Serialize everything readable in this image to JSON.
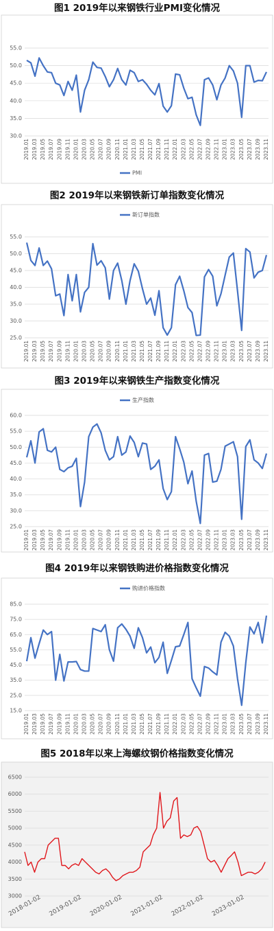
{
  "chart_data": [
    {
      "type": "line",
      "title": "图1  2019年以来钢铁行业PMI变化情况",
      "categories": [
        "2019.01",
        null,
        "2019.03",
        null,
        "2019.05",
        null,
        "2019.07",
        null,
        "2019.09",
        null,
        "2019.11",
        null,
        "2020.01",
        null,
        "2020.03",
        null,
        "2020.05",
        null,
        "2020.07",
        null,
        "2020.09",
        null,
        "2020.11",
        null,
        "2021.01",
        null,
        "2021.03",
        null,
        "2021.05",
        null,
        "2021.07",
        null,
        "2021.09",
        null,
        "2021.11",
        null,
        "2022.01",
        null,
        "2022.03",
        null,
        "2022.05",
        null,
        "2022.07",
        null,
        "2022.09",
        null,
        "2022.11",
        null,
        "2023.01",
        null,
        "2023.03",
        null,
        "2023.05",
        null,
        "2023.07",
        null,
        "2023.09",
        null,
        "2023.11"
      ],
      "series": [
        {
          "name": "PMI",
          "color": "#4472c4",
          "values": [
            51.5,
            50.8,
            47,
            52.2,
            50,
            48.2,
            48,
            45,
            44.5,
            41.5,
            45.5,
            43,
            47.3,
            36.8,
            43,
            46,
            51,
            49.5,
            49.3,
            46.9,
            44,
            46,
            49.2,
            46,
            44.5,
            48.7,
            48,
            45.5,
            46,
            44.7,
            43,
            41.7,
            44.9,
            38.5,
            36.8,
            38.6,
            47.6,
            47.4,
            43.6,
            40.6,
            41,
            36,
            33,
            46,
            46.5,
            44.5,
            40.3,
            44.5,
            46.5,
            50,
            48.5,
            45,
            35.3,
            50,
            50,
            45.3,
            45.8,
            45.7,
            48.2
          ]
        }
      ],
      "ylim": [
        30,
        55
      ],
      "yticks": [
        {
          "value": 30,
          "label": "30.0"
        },
        {
          "value": 35,
          "label": "35.0"
        },
        {
          "value": 40,
          "label": "40.0"
        },
        {
          "value": 45,
          "label": "45.0"
        },
        {
          "value": 50,
          "label": "50.0"
        },
        {
          "value": 55,
          "label": "55.0"
        }
      ],
      "legend": "bottom"
    },
    {
      "type": "line",
      "title": "图2  2019年以来钢铁新订单指数变化情况",
      "categories": [
        "2019.01",
        null,
        "2019.03",
        null,
        "2019.05",
        null,
        "2019.07",
        null,
        "2019.09",
        null,
        "2019.11",
        null,
        "2020.01",
        null,
        "2020.03",
        null,
        "2020.05",
        null,
        "2020.07",
        null,
        "2020.09",
        null,
        "2020.11",
        null,
        "2021.01",
        null,
        "2021.03",
        null,
        "2021.05",
        null,
        "2021.07",
        null,
        "2021.09",
        null,
        "2021.11",
        null,
        "2022.01",
        null,
        "2022.03",
        null,
        "2022.05",
        null,
        "2022.07",
        null,
        "2022.09",
        null,
        "2022.11",
        null,
        "2023.01",
        null,
        "2023.03",
        null,
        "2023.05",
        null,
        "2023.07",
        null,
        "2023.09",
        null,
        "2023.11"
      ],
      "series": [
        {
          "name": "新订单指数",
          "color": "#4472c4",
          "values": [
            53.3,
            48,
            46.5,
            51.7,
            46.5,
            47.8,
            45.5,
            37.5,
            38,
            31.6,
            43.8,
            36,
            43.8,
            32.7,
            38.5,
            40,
            53,
            46.6,
            47.9,
            45.8,
            36.5,
            45,
            47.2,
            42,
            35,
            42,
            47,
            44.8,
            39.6,
            35,
            36.8,
            31.7,
            39,
            28,
            25.8,
            28,
            40.8,
            43.3,
            39,
            34,
            32.5,
            25.7,
            25.8,
            43.1,
            45.3,
            43.3,
            34.5,
            38.1,
            43.6,
            49,
            50.2,
            38.9,
            27.2,
            51.5,
            50.5,
            42.8,
            44.5,
            45,
            49.6
          ]
        }
      ],
      "ylim": [
        25,
        55
      ],
      "yticks": [
        {
          "value": 25,
          "label": "25.0"
        },
        {
          "value": 30,
          "label": "30.0"
        },
        {
          "value": 35,
          "label": "35.0"
        },
        {
          "value": 40,
          "label": "40.0"
        },
        {
          "value": 45,
          "label": "45.0"
        },
        {
          "value": 50,
          "label": "50.0"
        },
        {
          "value": 55,
          "label": "55.0"
        }
      ],
      "legend": "top"
    },
    {
      "type": "line",
      "title": "图3   2019年以来钢铁生产指数变化情况",
      "categories": [
        "2019.01",
        null,
        "2019.03",
        null,
        "2019.05",
        null,
        "2019.07",
        null,
        "2019.09",
        null,
        "2019.11",
        null,
        "2020.01",
        null,
        "2020.03",
        null,
        "2020.05",
        null,
        "2020.07",
        null,
        "2020.09",
        null,
        "2020.11",
        null,
        "2021.01",
        null,
        "2021.03",
        null,
        "2021.05",
        null,
        "2021.07",
        null,
        "2021.09",
        null,
        "2021.11",
        null,
        "2022.01",
        null,
        "2022.03",
        null,
        "2022.05",
        null,
        "2022.07",
        null,
        "2022.09",
        null,
        "2022.11",
        null,
        "2023.01",
        null,
        "2023.03",
        null,
        "2023.05",
        null,
        "2023.07",
        null,
        "2023.09",
        null,
        "2023.11"
      ],
      "series": [
        {
          "name": "生产指数",
          "color": "#4472c4",
          "values": [
            46.8,
            52,
            45,
            54.8,
            55.8,
            49,
            48.5,
            50,
            43,
            42.3,
            43.5,
            44,
            46.5,
            31.3,
            39,
            53.3,
            56.3,
            57.3,
            54.5,
            49,
            46,
            47,
            53.3,
            47.5,
            48.5,
            53.5,
            51.5,
            47,
            51.3,
            51,
            43,
            44,
            46,
            37,
            33.5,
            36,
            53.3,
            49.5,
            45.3,
            38.5,
            42.5,
            33,
            26,
            47.5,
            48,
            39,
            39.3,
            43,
            50.3,
            51,
            51.7,
            47,
            27.3,
            50.2,
            52.3,
            46,
            45,
            43.3,
            48
          ]
        }
      ],
      "ylim": [
        25,
        60
      ],
      "yticks": [
        {
          "value": 25,
          "label": "25.0"
        },
        {
          "value": 30,
          "label": "30.0"
        },
        {
          "value": 35,
          "label": "35.0"
        },
        {
          "value": 40,
          "label": "40.0"
        },
        {
          "value": 45,
          "label": "45.0"
        },
        {
          "value": 50,
          "label": "50.0"
        },
        {
          "value": 55,
          "label": "55.0"
        },
        {
          "value": 60,
          "label": "60.0"
        }
      ],
      "legend": "top"
    },
    {
      "type": "line",
      "title": "图4  2019年以来钢铁购进价格指数变化情况",
      "categories": [
        "2019.01",
        null,
        "2019.03",
        null,
        "2019.05",
        null,
        "2019.07",
        null,
        "2019.09",
        null,
        "2019.11",
        null,
        "2020.01",
        null,
        "2020.03",
        null,
        "2020.05",
        null,
        "2020.07",
        null,
        "2020.09",
        null,
        "2020.11",
        null,
        "2021.01",
        null,
        "2021.03",
        null,
        "2021.05",
        null,
        "2021.07",
        null,
        "2021.09",
        null,
        "2021.11",
        null,
        "2022.01",
        null,
        "2022.03",
        null,
        "2022.05",
        null,
        "2022.07",
        null,
        "2022.09",
        null,
        "2022.11",
        null,
        "2023.01",
        null,
        "2023.03",
        null,
        "2023.05",
        null,
        "2023.07",
        null,
        "2023.09",
        null,
        "2023.11"
      ],
      "series": [
        {
          "name": "购进价格指数",
          "color": "#4472c4",
          "values": [
            47.5,
            63,
            49.5,
            59,
            68,
            65,
            67,
            35,
            52,
            34.5,
            47,
            47,
            47.3,
            42,
            41,
            41,
            69,
            68,
            67,
            71.5,
            55,
            47.5,
            69.5,
            72,
            68.5,
            64,
            56,
            69.5,
            63,
            53,
            56.8,
            46.5,
            50,
            60,
            39.5,
            48,
            57,
            57.5,
            65,
            73,
            36,
            30,
            24.5,
            44,
            43,
            40.5,
            38.5,
            60,
            66.5,
            64,
            57.5,
            36,
            18.5,
            46.5,
            70,
            65.5,
            73,
            59.5,
            77.5
          ]
        }
      ],
      "ylim": [
        15,
        85
      ],
      "yticks": [
        {
          "value": 15,
          "label": "15.0"
        },
        {
          "value": 25,
          "label": "25.0"
        },
        {
          "value": 35,
          "label": "35.0"
        },
        {
          "value": 45,
          "label": "45.0"
        },
        {
          "value": 55,
          "label": "55.0"
        },
        {
          "value": 65,
          "label": "65.0"
        },
        {
          "value": 75,
          "label": "75.0"
        },
        {
          "value": 85,
          "label": "85.0"
        }
      ],
      "legend": "top"
    },
    {
      "type": "line",
      "title": "图5  2018年以来上海螺纹钢价格指数变化情况",
      "x": [
        "2018-01-02",
        "2018-02-01",
        "2018-03-01",
        "2018-04-01",
        "2018-05-01",
        "2018-06-01",
        "2018-07-01",
        "2018-08-01",
        "2018-09-01",
        "2018-10-01",
        "2018-11-01",
        "2018-12-01",
        "2019-01-01",
        "2019-02-01",
        "2019-03-01",
        "2019-04-01",
        "2019-05-01",
        "2019-06-01",
        "2019-07-01",
        "2019-08-01",
        "2019-09-01",
        "2019-10-01",
        "2019-11-01",
        "2019-12-01",
        "2020-01-01",
        "2020-02-01",
        "2020-03-01",
        "2020-04-01",
        "2020-05-01",
        "2020-06-01",
        "2020-07-01",
        "2020-08-01",
        "2020-09-01",
        "2020-10-01",
        "2020-11-01",
        "2020-12-01",
        "2021-01-01",
        "2021-02-01",
        "2021-03-01",
        "2021-04-01",
        "2021-05-01",
        "2021-06-01",
        "2021-07-01",
        "2021-08-01",
        "2021-09-01",
        "2021-10-01",
        "2021-11-01",
        "2021-12-01",
        "2022-01-01",
        "2022-02-01",
        "2022-03-01",
        "2022-04-01",
        "2022-05-01",
        "2022-06-01",
        "2022-07-01",
        "2022-08-01",
        "2022-09-01",
        "2022-10-01",
        "2022-11-01",
        "2022-12-01",
        "2023-01-01",
        "2023-02-01",
        "2023-03-01",
        "2023-04-01",
        "2023-05-01",
        "2023-06-01",
        "2023-07-01",
        "2023-08-01",
        "2023-09-01",
        "2023-10-01",
        "2023-11-01",
        "2023-12-01"
      ],
      "series": [
        {
          "color": "#e0161b",
          "values": [
            4300,
            3900,
            4000,
            3700,
            4000,
            4100,
            4100,
            4500,
            4600,
            4700,
            4700,
            3900,
            3900,
            3800,
            3900,
            3950,
            3900,
            4100,
            4000,
            3900,
            3800,
            3700,
            3650,
            3750,
            3800,
            3700,
            3550,
            3450,
            3500,
            3600,
            3650,
            3700,
            3700,
            3750,
            3850,
            4300,
            4400,
            4500,
            4800,
            5000,
            6050,
            5000,
            5200,
            5300,
            5800,
            5900,
            4700,
            4800,
            4750,
            4800,
            5000,
            5050,
            4900,
            4500,
            4100,
            4000,
            4050,
            3900,
            3700,
            3900,
            4100,
            4200,
            4300,
            4000,
            3600,
            3650,
            3700,
            3700,
            3650,
            3700,
            3800,
            4000
          ]
        }
      ],
      "xlim": [
        "2018-01-02",
        "2023-12-31"
      ],
      "xticks": [
        "2018-01-02",
        "2019-01-02",
        "2020-01-02",
        "2021-01-02",
        "2022-01-02",
        "2023-01-02"
      ],
      "ylim": [
        3000,
        6500
      ],
      "yticks": [
        3000,
        3500,
        4000,
        4500,
        5000,
        5500,
        6000,
        6500
      ]
    }
  ]
}
